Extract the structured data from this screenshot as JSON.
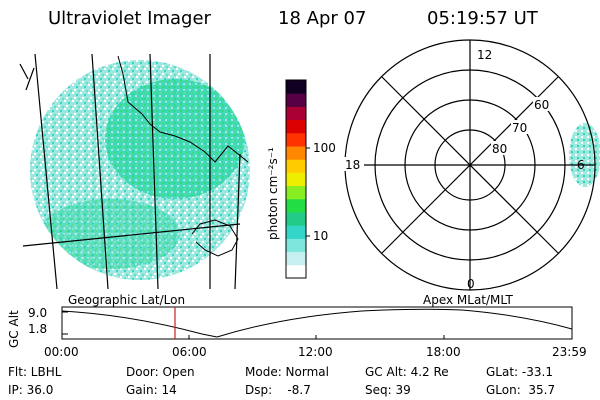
{
  "header": {
    "title": "Ultraviolet Imager",
    "date": "18 Apr 07",
    "time": "05:19:57 UT"
  },
  "colorbar": {
    "label": "photon cm⁻²s⁻¹",
    "ticks": [
      "100",
      "10"
    ],
    "colors": [
      "#ffffff",
      "#c8f0f0",
      "#7fe6de",
      "#33d6c8",
      "#22cc88",
      "#22dd44",
      "#88ee22",
      "#eeee00",
      "#ffcc00",
      "#ff8800",
      "#ff3300",
      "#dd0000",
      "#aa0033",
      "#550044",
      "#110022"
    ]
  },
  "polar": {
    "mlt_labels": {
      "top": "12",
      "left": "18",
      "right": "6",
      "bottom": "0"
    },
    "lat_labels": [
      "60",
      "70",
      "80"
    ]
  },
  "panel_labels": {
    "left": "Geographic Lat/Lon",
    "right": "Apex MLat/MLT"
  },
  "altitude_plot": {
    "ylabel": "GC Alt",
    "yticks": [
      "9.0",
      "1.8"
    ],
    "xticks": [
      "00:00",
      "06:00",
      "12:00",
      "18:00",
      "23:59"
    ],
    "marker_time": "05:19:57"
  },
  "info": {
    "flt": "Flt: LBHL",
    "ip": "IP: 36.0",
    "door": "Door: Open",
    "gain": "Gain: 14",
    "mode": "Mode: Normal",
    "dsp": "Dsp:    -8.7",
    "gcalt": "GC Alt: 4.2 Re",
    "seq": "Seq: 39",
    "glat": "GLat: -33.1",
    "glon": "GLon:  35.7"
  }
}
